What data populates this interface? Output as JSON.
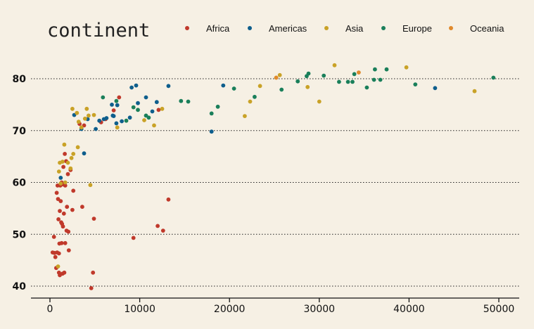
{
  "chart_data": {
    "type": "scatter",
    "title": "",
    "xlabel": "",
    "ylabel": "",
    "legend": {
      "title": "continent",
      "position": "top",
      "entries": [
        {
          "name": "Africa",
          "color": "#c0392b"
        },
        {
          "name": "Americas",
          "color": "#0e5e8c"
        },
        {
          "name": "Asia",
          "color": "#c9a227"
        },
        {
          "name": "Europe",
          "color": "#1a7f5a"
        },
        {
          "name": "Oceania",
          "color": "#e08a2c"
        }
      ]
    },
    "xlim": [
      -2000,
      51000
    ],
    "ylim": [
      37,
      87
    ],
    "x_ticks": [
      0,
      10000,
      20000,
      30000,
      40000,
      50000
    ],
    "x_tick_labels": [
      "0",
      "10000",
      "20000",
      "30000",
      "40000",
      "50000"
    ],
    "y_ticks": [
      40,
      50,
      60,
      70,
      80
    ],
    "y_tick_labels": [
      "40",
      "50",
      "60",
      "70",
      "80"
    ],
    "grid": {
      "horizontal": true,
      "style": "dotted",
      "vertical": false
    },
    "series": [
      {
        "name": "Africa",
        "color": "#c0392b",
        "points": [
          [
            300,
            46.5
          ],
          [
            450,
            49.5
          ],
          [
            500,
            46.4
          ],
          [
            600,
            45.6
          ],
          [
            700,
            43.5
          ],
          [
            750,
            58.0
          ],
          [
            800,
            46.5
          ],
          [
            850,
            59.4
          ],
          [
            900,
            56.8
          ],
          [
            950,
            52.9
          ],
          [
            1000,
            42.6
          ],
          [
            1000,
            46.3
          ],
          [
            1050,
            48.2
          ],
          [
            1100,
            42.1
          ],
          [
            1100,
            54.5
          ],
          [
            1150,
            59.4
          ],
          [
            1200,
            56.4
          ],
          [
            1250,
            52.3
          ],
          [
            1300,
            48.3
          ],
          [
            1300,
            60.0
          ],
          [
            1350,
            52.0
          ],
          [
            1400,
            42.4
          ],
          [
            1450,
            51.5
          ],
          [
            1500,
            59.6
          ],
          [
            1500,
            63.0
          ],
          [
            1550,
            54.0
          ],
          [
            1600,
            42.6
          ],
          [
            1650,
            65.5
          ],
          [
            1700,
            48.3
          ],
          [
            1700,
            59.4
          ],
          [
            1800,
            64.1
          ],
          [
            1850,
            50.7
          ],
          [
            1900,
            55.3
          ],
          [
            2000,
            61.6
          ],
          [
            2050,
            50.5
          ],
          [
            2100,
            46.9
          ],
          [
            2300,
            62.4
          ],
          [
            2500,
            54.7
          ],
          [
            2600,
            58.4
          ],
          [
            3300,
            71.3
          ],
          [
            3600,
            55.3
          ],
          [
            3800,
            71.0
          ],
          [
            4600,
            39.6
          ],
          [
            4800,
            42.6
          ],
          [
            4900,
            53.0
          ],
          [
            5700,
            71.6
          ],
          [
            6200,
            72.2
          ],
          [
            7100,
            73.9
          ],
          [
            7700,
            76.4
          ],
          [
            9300,
            49.3
          ],
          [
            12000,
            51.6
          ],
          [
            12100,
            74.0
          ],
          [
            12600,
            50.7
          ],
          [
            13200,
            56.7
          ]
        ]
      },
      {
        "name": "Americas",
        "color": "#0e5e8c",
        "points": [
          [
            1200,
            60.9
          ],
          [
            2700,
            73.0
          ],
          [
            3500,
            70.3
          ],
          [
            3800,
            65.6
          ],
          [
            4200,
            72.2
          ],
          [
            5100,
            70.3
          ],
          [
            5500,
            71.9
          ],
          [
            6000,
            72.2
          ],
          [
            6300,
            72.4
          ],
          [
            6900,
            75.0
          ],
          [
            7000,
            72.9
          ],
          [
            7100,
            72.8
          ],
          [
            7400,
            71.4
          ],
          [
            7500,
            74.9
          ],
          [
            8000,
            71.8
          ],
          [
            8900,
            72.5
          ],
          [
            9100,
            78.3
          ],
          [
            9600,
            78.7
          ],
          [
            9800,
            75.3
          ],
          [
            10700,
            76.4
          ],
          [
            11400,
            73.7
          ],
          [
            11900,
            75.5
          ],
          [
            13200,
            78.6
          ],
          [
            18000,
            69.8
          ],
          [
            19300,
            78.7
          ],
          [
            42900,
            78.2
          ]
        ]
      },
      {
        "name": "Asia",
        "color": "#c9a227",
        "points": [
          [
            900,
            43.8
          ],
          [
            1000,
            62.1
          ],
          [
            1100,
            63.8
          ],
          [
            1200,
            59.8
          ],
          [
            1400,
            64.0
          ],
          [
            1600,
            67.3
          ],
          [
            1700,
            60.0
          ],
          [
            2000,
            63.8
          ],
          [
            2300,
            62.7
          ],
          [
            2400,
            64.7
          ],
          [
            2500,
            74.2
          ],
          [
            2600,
            65.5
          ],
          [
            3000,
            73.4
          ],
          [
            3100,
            66.8
          ],
          [
            3200,
            71.7
          ],
          [
            3500,
            70.6
          ],
          [
            3900,
            72.3
          ],
          [
            4100,
            74.2
          ],
          [
            4300,
            72.9
          ],
          [
            4500,
            59.5
          ],
          [
            4900,
            73.0
          ],
          [
            7500,
            70.6
          ],
          [
            10500,
            72.0
          ],
          [
            11600,
            71.0
          ],
          [
            12500,
            74.2
          ],
          [
            21700,
            72.8
          ],
          [
            22300,
            75.6
          ],
          [
            23400,
            78.6
          ],
          [
            25200,
            80.2
          ],
          [
            25600,
            80.7
          ],
          [
            28700,
            78.4
          ],
          [
            30000,
            75.6
          ],
          [
            31700,
            82.6
          ],
          [
            39700,
            82.2
          ],
          [
            47300,
            77.6
          ]
        ]
      },
      {
        "name": "Europe",
        "color": "#1a7f5a",
        "points": [
          [
            5900,
            76.4
          ],
          [
            7400,
            75.7
          ],
          [
            8500,
            71.9
          ],
          [
            9300,
            74.5
          ],
          [
            9800,
            74.0
          ],
          [
            10700,
            72.9
          ],
          [
            11000,
            72.5
          ],
          [
            14600,
            75.7
          ],
          [
            15400,
            75.6
          ],
          [
            18000,
            73.3
          ],
          [
            18700,
            74.6
          ],
          [
            20500,
            78.1
          ],
          [
            22800,
            76.5
          ],
          [
            25800,
            77.9
          ],
          [
            27600,
            79.5
          ],
          [
            28600,
            80.5
          ],
          [
            28800,
            81.0
          ],
          [
            30500,
            80.6
          ],
          [
            32200,
            79.4
          ],
          [
            33200,
            79.4
          ],
          [
            33700,
            79.4
          ],
          [
            33900,
            80.9
          ],
          [
            35300,
            78.3
          ],
          [
            36100,
            79.8
          ],
          [
            36200,
            81.8
          ],
          [
            36800,
            79.8
          ],
          [
            37500,
            81.8
          ],
          [
            40700,
            78.9
          ],
          [
            49400,
            80.2
          ]
        ]
      },
      {
        "name": "Oceania",
        "color": "#e08a2c",
        "points": [
          [
            34400,
            81.2
          ],
          [
            25200,
            80.2
          ]
        ]
      }
    ]
  }
}
